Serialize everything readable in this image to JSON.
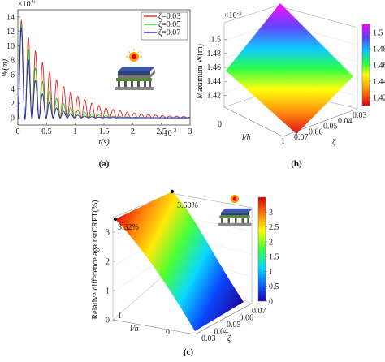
{
  "chart_data": [
    {
      "panel": "(a)",
      "type": "line",
      "ylabel": "W(m)",
      "xlabel": "t(s)",
      "y_exponent": "×10",
      "y_exponent_power": "-6",
      "x_exponent": "×10",
      "x_exponent_power": "-3",
      "xlim": [
        0,
        3
      ],
      "ylim": [
        -1,
        15
      ],
      "xticks": [
        "0",
        "0.5",
        "1",
        "1.5",
        "2",
        "2.5",
        "3"
      ],
      "yticks": [
        "0",
        "2",
        "4",
        "6",
        "8",
        "10",
        "12",
        "14"
      ],
      "legend_position": "top-right",
      "oscillation_period": 0.123,
      "series": [
        {
          "name": "ζ=0.03",
          "color": "#e8231e",
          "zeta": 0.03,
          "amplitude": 14.2
        },
        {
          "name": "ζ=0.05",
          "color": "#1fc41f",
          "zeta": 0.05,
          "amplitude": 14.0
        },
        {
          "name": "ζ=0.07",
          "color": "#2020c8",
          "zeta": 0.07,
          "amplitude": 13.8
        }
      ]
    },
    {
      "panel": "(b)",
      "type": "surface",
      "zlabel": "Maximum W(m)",
      "z_exponent": "×10",
      "z_exponent_power": "-5",
      "xlabel": "l/h",
      "ylabel": "ζ",
      "zticks": [
        "1.42",
        "1.44",
        "1.46",
        "1.48",
        "1.5"
      ],
      "xticks": [
        "0",
        "1"
      ],
      "yticks": [
        "0.07",
        "0.06",
        "0.05",
        "0.04",
        "0.03"
      ],
      "colorbar_ticks": [
        "1.42",
        "1.44",
        "1.46",
        "1.48",
        "1.5"
      ],
      "zlim": [
        1.41,
        1.51
      ]
    },
    {
      "panel": "(c)",
      "type": "surface",
      "zlabel": "Relative difference againstCRPT(%)",
      "xlabel": "l/h",
      "ylabel": "ζ",
      "zticks": [
        "0",
        "1",
        "2",
        "3"
      ],
      "xticks": [
        "0",
        "1"
      ],
      "yticks": [
        "0.03",
        "0.04",
        "0.05",
        "0.06",
        "0.07"
      ],
      "colorbar_ticks": [
        "0",
        "0.5",
        "1",
        "1.5",
        "2",
        "2.5",
        "3"
      ],
      "annotations": [
        "3.32%",
        "3.50%"
      ],
      "zlim": [
        0,
        3.5
      ]
    }
  ]
}
